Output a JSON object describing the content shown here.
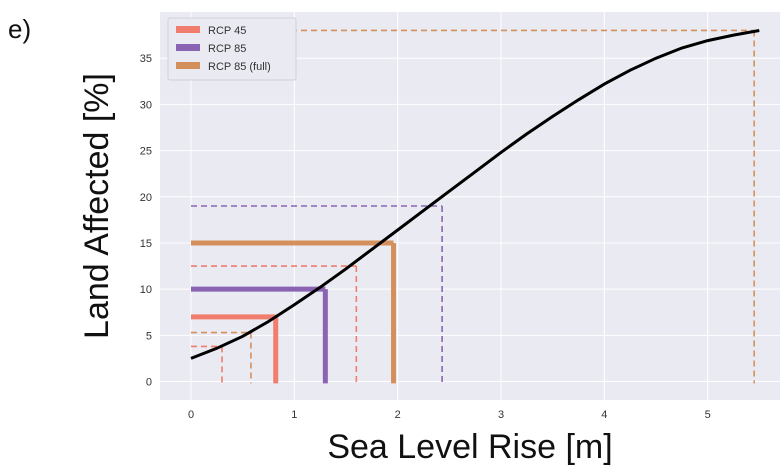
{
  "panel_label": "e)",
  "chart_data": {
    "type": "line",
    "xlabel": "Sea Level Rise [m]",
    "ylabel": "Land Affected [%]",
    "xlim": [
      -0.3,
      5.7
    ],
    "ylim": [
      -2,
      40
    ],
    "xticks": [
      0,
      1,
      2,
      3,
      4,
      5
    ],
    "yticks": [
      0,
      5,
      10,
      15,
      20,
      25,
      30,
      35
    ],
    "grid": true,
    "background": "#eaeaf2",
    "legend_position": "top-left",
    "curve": {
      "color": "#000000",
      "x": [
        0,
        0.25,
        0.5,
        0.75,
        1.0,
        1.25,
        1.5,
        1.75,
        2.0,
        2.25,
        2.5,
        2.75,
        3.0,
        3.25,
        3.5,
        3.75,
        4.0,
        4.25,
        4.5,
        4.75,
        5.0,
        5.25,
        5.5
      ],
      "y": [
        2.5,
        3.6,
        4.9,
        6.5,
        8.3,
        10.2,
        12.2,
        14.3,
        16.4,
        18.5,
        20.6,
        22.7,
        24.8,
        26.8,
        28.7,
        30.5,
        32.2,
        33.7,
        35.0,
        36.1,
        36.9,
        37.5,
        38.0
      ]
    },
    "series": [
      {
        "name": "RCP 45",
        "color": "#f07d6e",
        "solid": [
          {
            "x": 0.82,
            "y": 7.0
          }
        ],
        "dashed": [
          {
            "x": 0.3,
            "y": 3.8
          },
          {
            "x": 1.6,
            "y": 12.5
          }
        ]
      },
      {
        "name": "RCP 85",
        "color": "#8a64b3",
        "solid": [
          {
            "x": 1.3,
            "y": 10.0
          }
        ],
        "dashed": [
          {
            "x": 2.43,
            "y": 19.0
          }
        ]
      },
      {
        "name": "RCP 85 (full)",
        "color": "#d4905c",
        "solid": [
          {
            "x": 1.96,
            "y": 15.0
          }
        ],
        "dashed": [
          {
            "x": 0.58,
            "y": 5.3
          },
          {
            "x": 5.45,
            "y": 38.0
          }
        ]
      }
    ]
  }
}
